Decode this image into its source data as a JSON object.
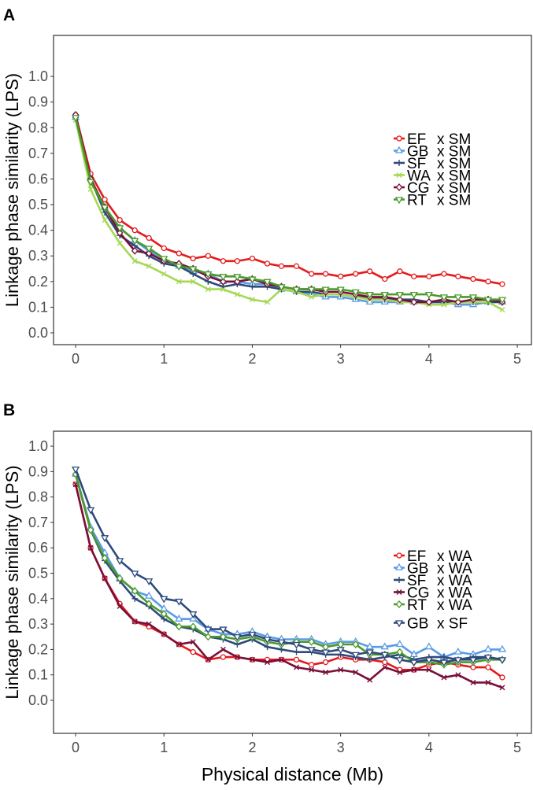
{
  "chart_data": [
    {
      "panel_label": "A",
      "type": "line",
      "title": "",
      "xlabel": "",
      "ylabel": "Linkage phase similarity (LPS)",
      "xlim": [
        -0.25,
        5.16
      ],
      "ylim": [
        -0.046,
        1.16
      ],
      "xticks": [
        "0",
        "1",
        "2",
        "3",
        "4",
        "5"
      ],
      "yticks": [
        "0.0",
        "0.1",
        "0.2",
        "0.3",
        "0.4",
        "0.5",
        "0.6",
        "0.7",
        "0.8",
        "0.9",
        "1.0"
      ],
      "grid": false,
      "legend_position": "right",
      "x": [
        0,
        0.17,
        0.33,
        0.5,
        0.67,
        0.83,
        1.0,
        1.17,
        1.33,
        1.5,
        1.67,
        1.83,
        2.0,
        2.17,
        2.33,
        2.5,
        2.67,
        2.83,
        3.0,
        3.17,
        3.33,
        3.5,
        3.67,
        3.83,
        4.0,
        4.17,
        4.33,
        4.5,
        4.67,
        4.83
      ],
      "series": [
        {
          "name": "EF",
          "cross": "x SM",
          "color": "#e41a1c",
          "marker": "circle",
          "values": [
            0.85,
            0.62,
            0.52,
            0.44,
            0.4,
            0.37,
            0.33,
            0.31,
            0.29,
            0.3,
            0.28,
            0.28,
            0.29,
            0.27,
            0.26,
            0.26,
            0.23,
            0.23,
            0.22,
            0.23,
            0.24,
            0.21,
            0.24,
            0.22,
            0.22,
            0.23,
            0.22,
            0.21,
            0.2,
            0.19
          ]
        },
        {
          "name": "GB",
          "cross": "x SM",
          "color": "#5b9be6",
          "marker": "triangle",
          "values": [
            0.84,
            0.6,
            0.49,
            0.41,
            0.36,
            0.32,
            0.28,
            0.26,
            0.24,
            0.23,
            0.2,
            0.2,
            0.19,
            0.19,
            0.17,
            0.16,
            0.15,
            0.14,
            0.14,
            0.13,
            0.12,
            0.12,
            0.12,
            0.12,
            0.12,
            0.12,
            0.11,
            0.11,
            0.12,
            0.12
          ]
        },
        {
          "name": "SF",
          "cross": "x SM",
          "color": "#2e4a7a",
          "marker": "plus",
          "values": [
            0.84,
            0.6,
            0.47,
            0.38,
            0.34,
            0.3,
            0.27,
            0.26,
            0.23,
            0.2,
            0.18,
            0.19,
            0.18,
            0.18,
            0.17,
            0.16,
            0.16,
            0.15,
            0.15,
            0.14,
            0.14,
            0.13,
            0.13,
            0.13,
            0.12,
            0.12,
            0.12,
            0.12,
            0.12,
            0.12
          ]
        },
        {
          "name": "WA",
          "cross": "x SM",
          "color": "#a6d854",
          "marker": "x",
          "values": [
            0.83,
            0.56,
            0.44,
            0.35,
            0.28,
            0.26,
            0.23,
            0.2,
            0.2,
            0.17,
            0.17,
            0.15,
            0.13,
            0.12,
            0.17,
            0.16,
            0.14,
            0.15,
            0.15,
            0.14,
            0.13,
            0.13,
            0.12,
            0.12,
            0.11,
            0.11,
            0.12,
            0.12,
            0.12,
            0.09
          ]
        },
        {
          "name": "CG",
          "cross": "x SM",
          "color": "#7a0f3a",
          "marker": "diamond",
          "values": [
            0.85,
            0.6,
            0.49,
            0.39,
            0.32,
            0.31,
            0.28,
            0.27,
            0.25,
            0.22,
            0.2,
            0.2,
            0.21,
            0.19,
            0.18,
            0.17,
            0.17,
            0.16,
            0.16,
            0.15,
            0.14,
            0.14,
            0.13,
            0.12,
            0.12,
            0.13,
            0.12,
            0.13,
            0.13,
            0.12
          ]
        },
        {
          "name": "RT",
          "cross": "x SM",
          "color": "#4a9a2a",
          "marker": "triangle-down",
          "values": [
            0.84,
            0.59,
            0.49,
            0.41,
            0.36,
            0.33,
            0.29,
            0.26,
            0.25,
            0.23,
            0.22,
            0.22,
            0.21,
            0.2,
            0.18,
            0.17,
            0.17,
            0.17,
            0.17,
            0.16,
            0.15,
            0.15,
            0.15,
            0.15,
            0.15,
            0.14,
            0.14,
            0.14,
            0.13,
            0.13
          ]
        }
      ]
    },
    {
      "panel_label": "B",
      "type": "line",
      "title": "",
      "xlabel": "Physical distance (Mb)",
      "ylabel": "Linkage phase similarity (LPS)",
      "xlim": [
        -0.25,
        5.16
      ],
      "ylim": [
        -0.13,
        1.059
      ],
      "xticks": [
        "0",
        "1",
        "2",
        "3",
        "4",
        "5"
      ],
      "yticks": [
        "0.0",
        "0.1",
        "0.2",
        "0.3",
        "0.4",
        "0.5",
        "0.6",
        "0.7",
        "0.8",
        "0.9",
        "1.0"
      ],
      "grid": false,
      "legend_position": "right",
      "x": [
        0,
        0.17,
        0.33,
        0.5,
        0.67,
        0.83,
        1.0,
        1.17,
        1.33,
        1.5,
        1.67,
        1.83,
        2.0,
        2.17,
        2.33,
        2.5,
        2.67,
        2.83,
        3.0,
        3.17,
        3.33,
        3.5,
        3.67,
        3.83,
        4.0,
        4.17,
        4.33,
        4.5,
        4.67,
        4.83
      ],
      "series": [
        {
          "name": "EF",
          "cross": "x WA",
          "color": "#e41a1c",
          "marker": "circle",
          "values": [
            0.85,
            0.6,
            0.48,
            0.38,
            0.31,
            0.29,
            0.26,
            0.22,
            0.19,
            0.16,
            0.17,
            0.17,
            0.16,
            0.16,
            0.16,
            0.16,
            0.14,
            0.15,
            0.17,
            0.16,
            0.16,
            0.15,
            0.12,
            0.12,
            0.14,
            0.15,
            0.14,
            0.13,
            0.13,
            0.09
          ]
        },
        {
          "name": "GB",
          "cross": "x WA",
          "color": "#5b9be6",
          "marker": "triangle",
          "values": [
            0.89,
            0.68,
            0.58,
            0.48,
            0.43,
            0.41,
            0.36,
            0.32,
            0.32,
            0.28,
            0.26,
            0.26,
            0.27,
            0.25,
            0.24,
            0.24,
            0.24,
            0.22,
            0.23,
            0.23,
            0.21,
            0.21,
            0.22,
            0.18,
            0.21,
            0.17,
            0.19,
            0.18,
            0.2,
            0.2
          ]
        },
        {
          "name": "SF",
          "cross": "x WA",
          "color": "#2e4a7a",
          "marker": "plus",
          "values": [
            0.89,
            0.67,
            0.55,
            0.47,
            0.4,
            0.37,
            0.32,
            0.29,
            0.28,
            0.25,
            0.24,
            0.22,
            0.24,
            0.21,
            0.2,
            0.19,
            0.19,
            0.18,
            0.18,
            0.17,
            0.16,
            0.17,
            0.18,
            0.16,
            0.17,
            0.17,
            0.16,
            0.17,
            0.17,
            0.16
          ]
        },
        {
          "name": "CG",
          "cross": "x WA",
          "color": "#7a0f3a",
          "marker": "x",
          "values": [
            0.85,
            0.6,
            0.48,
            0.37,
            0.31,
            0.3,
            0.26,
            0.22,
            0.23,
            0.16,
            0.2,
            0.17,
            0.16,
            0.15,
            0.16,
            0.13,
            0.12,
            0.11,
            0.12,
            0.11,
            0.08,
            0.13,
            0.11,
            0.12,
            0.12,
            0.09,
            0.1,
            0.07,
            0.07,
            0.05
          ]
        },
        {
          "name": "RT",
          "cross": "x WA",
          "color": "#4a9a2a",
          "marker": "diamond",
          "values": [
            0.89,
            0.67,
            0.56,
            0.48,
            0.43,
            0.38,
            0.34,
            0.29,
            0.29,
            0.25,
            0.25,
            0.24,
            0.25,
            0.23,
            0.22,
            0.23,
            0.23,
            0.21,
            0.22,
            0.22,
            0.18,
            0.18,
            0.19,
            0.15,
            0.15,
            0.14,
            0.15,
            0.15,
            0.16,
            0.16
          ]
        },
        {
          "name": "GB",
          "cross": "x SF",
          "color": "#2e4a7a",
          "marker": "triangle-down",
          "values": [
            0.91,
            0.75,
            0.64,
            0.55,
            0.5,
            0.47,
            0.4,
            0.39,
            0.34,
            0.28,
            0.28,
            0.25,
            0.26,
            0.24,
            0.23,
            0.22,
            0.2,
            0.19,
            0.2,
            0.18,
            0.19,
            0.18,
            0.16,
            0.15,
            0.16,
            0.15,
            0.16,
            0.16,
            0.17,
            0.16
          ]
        }
      ]
    }
  ]
}
